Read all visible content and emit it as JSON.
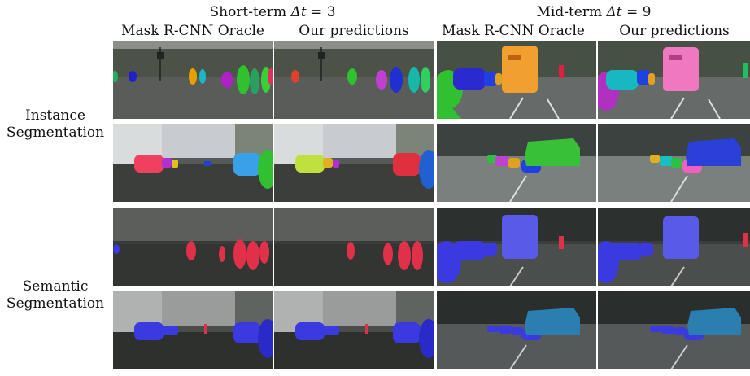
{
  "groups": {
    "short_term": {
      "prefix": "Short-term ",
      "delta": "Δt",
      "eq": " = 3"
    },
    "mid_term": {
      "prefix": "Mid-term ",
      "delta": "Δt",
      "eq": " = 9"
    }
  },
  "columns": [
    "Mask R-CNN Oracle",
    "Our predictions",
    "Mask R-CNN Oracle",
    "Our predictions"
  ],
  "row_groups": {
    "instance": {
      "line1": "Instance",
      "line2": "Segmentation"
    },
    "semantic": {
      "line1": "Semantic",
      "line2": "Segmentation"
    }
  },
  "colors": {
    "semantic_person": "#e0304a",
    "semantic_car": "#3a3ae0",
    "semantic_truck": "#2a7fb0"
  }
}
